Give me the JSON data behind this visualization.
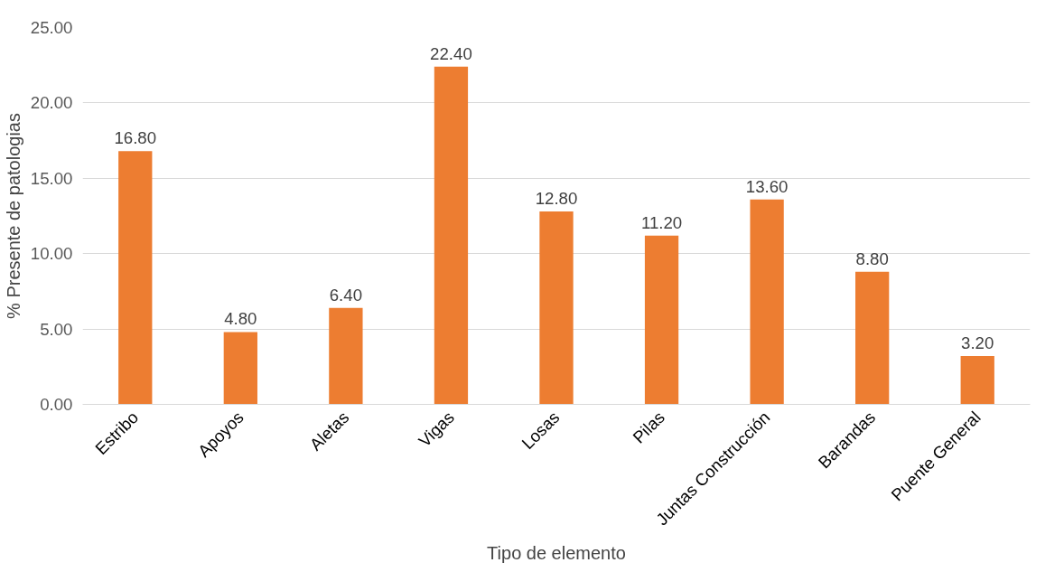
{
  "chart_data": {
    "type": "bar",
    "xlabel": "Tipo de elemento",
    "ylabel": "% Presente de patologias",
    "categories": [
      "Estribo",
      "Apoyos",
      "Aletas",
      "Vigas",
      "Losas",
      "Pilas",
      "Juntas Construcción",
      "Barandas",
      "Puente General"
    ],
    "values": [
      16.8,
      4.8,
      6.4,
      22.4,
      12.8,
      11.2,
      13.6,
      8.8,
      3.2
    ],
    "value_labels": [
      "16.80",
      "4.80",
      "6.40",
      "22.40",
      "12.80",
      "11.20",
      "13.60",
      "8.80",
      "3.20"
    ],
    "color": "#ed7d31",
    "ylim": [
      0,
      25
    ],
    "yticks": [
      {
        "value": 0,
        "label": "0.00"
      },
      {
        "value": 5,
        "label": "5.00"
      },
      {
        "value": 10,
        "label": "10.00"
      },
      {
        "value": 15,
        "label": "15.00"
      },
      {
        "value": 20,
        "label": "20.00"
      },
      {
        "value": 25,
        "label": "25.00"
      }
    ],
    "grid": "y"
  }
}
